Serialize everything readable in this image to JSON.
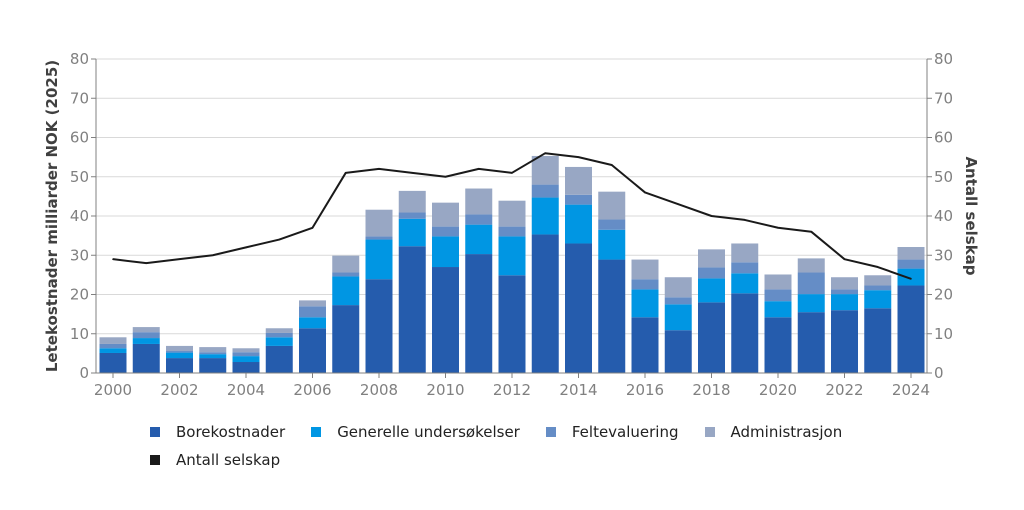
{
  "chart_data": {
    "type": "bar",
    "stacked": true,
    "title": "",
    "categories": [
      "2000",
      "2001",
      "2002",
      "2003",
      "2004",
      "2005",
      "2006",
      "2007",
      "2008",
      "2009",
      "2010",
      "2011",
      "2012",
      "2013",
      "2014",
      "2015",
      "2016",
      "2017",
      "2018",
      "2019",
      "2020",
      "2021",
      "2022",
      "2023",
      "2024"
    ],
    "x_tick_labels": [
      "2000",
      "2002",
      "2004",
      "2006",
      "2008",
      "2010",
      "2012",
      "2014",
      "2016",
      "2018",
      "2020",
      "2022",
      "2024"
    ],
    "ylabel": "Letekostnader milliarder NOK (2025)",
    "y2label": "Antall selskap",
    "ylim": [
      0,
      80
    ],
    "y2lim": [
      0,
      80
    ],
    "y_ticks": [
      0,
      10,
      20,
      30,
      40,
      50,
      60,
      70,
      80
    ],
    "grid": true,
    "legend_position": "bottom",
    "series": [
      {
        "name": "Borekostnader",
        "type": "bar",
        "axis": "left",
        "color": "#255CAD",
        "values": [
          5.1,
          7.4,
          3.8,
          3.8,
          2.8,
          6.9,
          11.4,
          17.3,
          23.9,
          32.3,
          27.0,
          30.3,
          24.9,
          35.3,
          33.0,
          28.9,
          14.2,
          10.9,
          18.0,
          20.3,
          14.2,
          15.5,
          16.0,
          16.5,
          22.3
        ]
      },
      {
        "name": "Generelle undersøkelser",
        "type": "bar",
        "axis": "left",
        "color": "#0096E3",
        "values": [
          1.2,
          1.5,
          1.4,
          1.0,
          1.5,
          2.2,
          2.8,
          7.3,
          10.1,
          7.0,
          7.8,
          7.5,
          9.9,
          9.4,
          9.9,
          7.6,
          7.1,
          6.6,
          6.1,
          5.1,
          4.1,
          4.6,
          4.1,
          4.6,
          4.3
        ]
      },
      {
        "name": "Feltevaluering",
        "type": "bar",
        "axis": "left",
        "color": "#658DC6",
        "values": [
          1.1,
          1.5,
          0.4,
          0.5,
          1.0,
          1.1,
          2.8,
          1.0,
          0.8,
          1.6,
          2.5,
          2.6,
          2.5,
          3.3,
          2.5,
          2.6,
          2.6,
          1.8,
          2.8,
          2.8,
          3.0,
          5.5,
          1.2,
          1.2,
          2.3
        ]
      },
      {
        "name": "Administrasjon",
        "type": "bar",
        "axis": "left",
        "color": "#98A7C4",
        "values": [
          1.7,
          1.3,
          1.3,
          1.3,
          1.0,
          1.2,
          1.5,
          4.3,
          6.8,
          5.5,
          6.1,
          6.6,
          6.6,
          7.3,
          7.1,
          7.1,
          5.0,
          5.1,
          4.6,
          4.8,
          3.8,
          3.6,
          3.1,
          2.6,
          3.2
        ]
      },
      {
        "name": "Antall selskap",
        "type": "line",
        "axis": "right",
        "color": "#1A1A1A",
        "values": [
          29,
          28,
          29,
          30,
          32,
          34,
          37,
          51,
          52,
          51,
          50,
          52,
          51,
          56,
          55,
          53,
          46,
          43,
          40,
          39,
          37,
          36,
          29,
          27,
          24
        ]
      }
    ]
  }
}
